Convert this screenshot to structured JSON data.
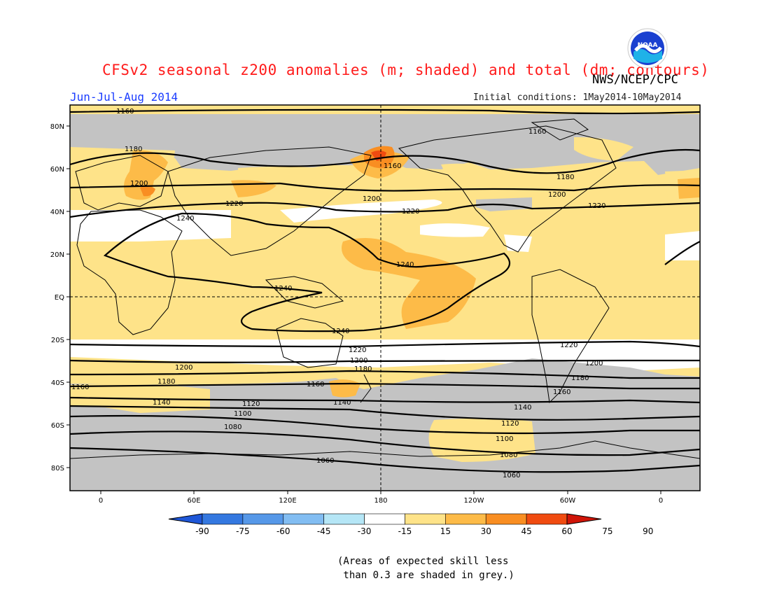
{
  "header": {
    "title": "CFSv2 seasonal z200 anomalies (m; shaded) and total (dm; contours)",
    "org": "NWS/NCEP/CPC",
    "period": "Jun-Jul-Aug 2014",
    "initial_conditions": "Initial conditions: 1May2014-10May2014",
    "logo_text": "NOAA"
  },
  "map": {
    "lat_labels": [
      "80N",
      "60N",
      "40N",
      "20N",
      "EQ",
      "20S",
      "40S",
      "60S",
      "80S"
    ],
    "lon_labels": [
      "0",
      "60E",
      "120E",
      "180",
      "120W",
      "60W",
      "0"
    ],
    "contours": [
      {
        "label": "1160"
      },
      {
        "label": "1180"
      },
      {
        "label": "1200"
      },
      {
        "label": "1220"
      },
      {
        "label": "1240"
      },
      {
        "label": "1140"
      },
      {
        "label": "1120"
      },
      {
        "label": "1100"
      },
      {
        "label": "1080"
      },
      {
        "label": "1060"
      }
    ],
    "colors": {
      "skill_grey": "#c3c3c3",
      "pos15": "#fee389",
      "pos30": "#fdbb48",
      "pos45": "#f98e22",
      "pos60": "#f04b10",
      "pos75": "#d01508",
      "land": "#000000"
    }
  },
  "colorbar": {
    "labels": [
      "-90",
      "-75",
      "-60",
      "-45",
      "-30",
      "-15",
      "15",
      "30",
      "45",
      "60",
      "75",
      "90"
    ],
    "colors": [
      "#1f57d8",
      "#3478e0",
      "#5698e8",
      "#82bdf2",
      "#b5e6f6",
      "#ffffff",
      "#fee389",
      "#fdbb48",
      "#f98e22",
      "#f04b10",
      "#d01508"
    ]
  },
  "note": "(Areas of expected skill less\n than 0.3 are shaded in grey.)"
}
